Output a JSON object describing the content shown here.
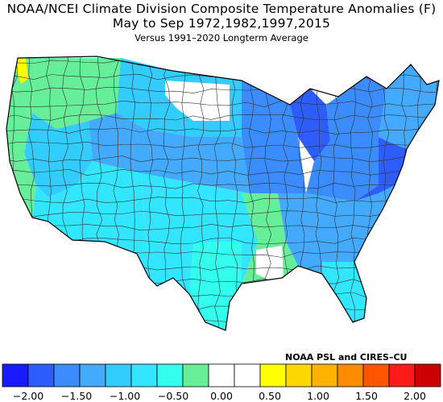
{
  "title": {
    "line1": "NOAA/NCEI Climate Division Composite Temperature Anomalies (F)",
    "line2": "May to Sep  1972,1982,1997,2015",
    "line3": "Versus 1991–2020 Longterm Average"
  },
  "credit": "NOAA PSL and CIRES–CU",
  "colorbar": {
    "colors": [
      "#1a1aff",
      "#2d5cff",
      "#3a8cff",
      "#44aaff",
      "#33ccff",
      "#33e6ff",
      "#33ffee",
      "#66ee99",
      "#ffffff",
      "#ffffff",
      "#ffff00",
      "#ffd700",
      "#ffb300",
      "#ff8c00",
      "#ff5500",
      "#ff1a1a",
      "#cc0000"
    ],
    "tick_labels": [
      "−2.00",
      "−1.50",
      "−1.00",
      "−0.50",
      "0.00",
      "0.50",
      "1.00",
      "1.50",
      "2.00"
    ],
    "range": [
      -2.0,
      2.0
    ]
  },
  "regions": {
    "northwest": "#66ee99",
    "west_coast": "#66ee99",
    "great_basin": "#33ccff",
    "southwest": "#33e6ff",
    "northern_plains": "#33ccff",
    "dakotas_core": "#ffffff",
    "central_plains": "#44aaff",
    "southern_plains": "#33e6ff",
    "texas_gulf": "#33ffee",
    "lower_mississippi": "#66ee99",
    "louisiana_white": "#ffffff",
    "midwest": "#3a8cff",
    "michigan": "#2d5cff",
    "northeast": "#3a8cff",
    "new_england": "#44aaff",
    "mid_atlantic": "#2d5cff",
    "southeast": "#44aaff",
    "florida": "#33e6ff",
    "washington_hotspot": "#ffff00"
  }
}
